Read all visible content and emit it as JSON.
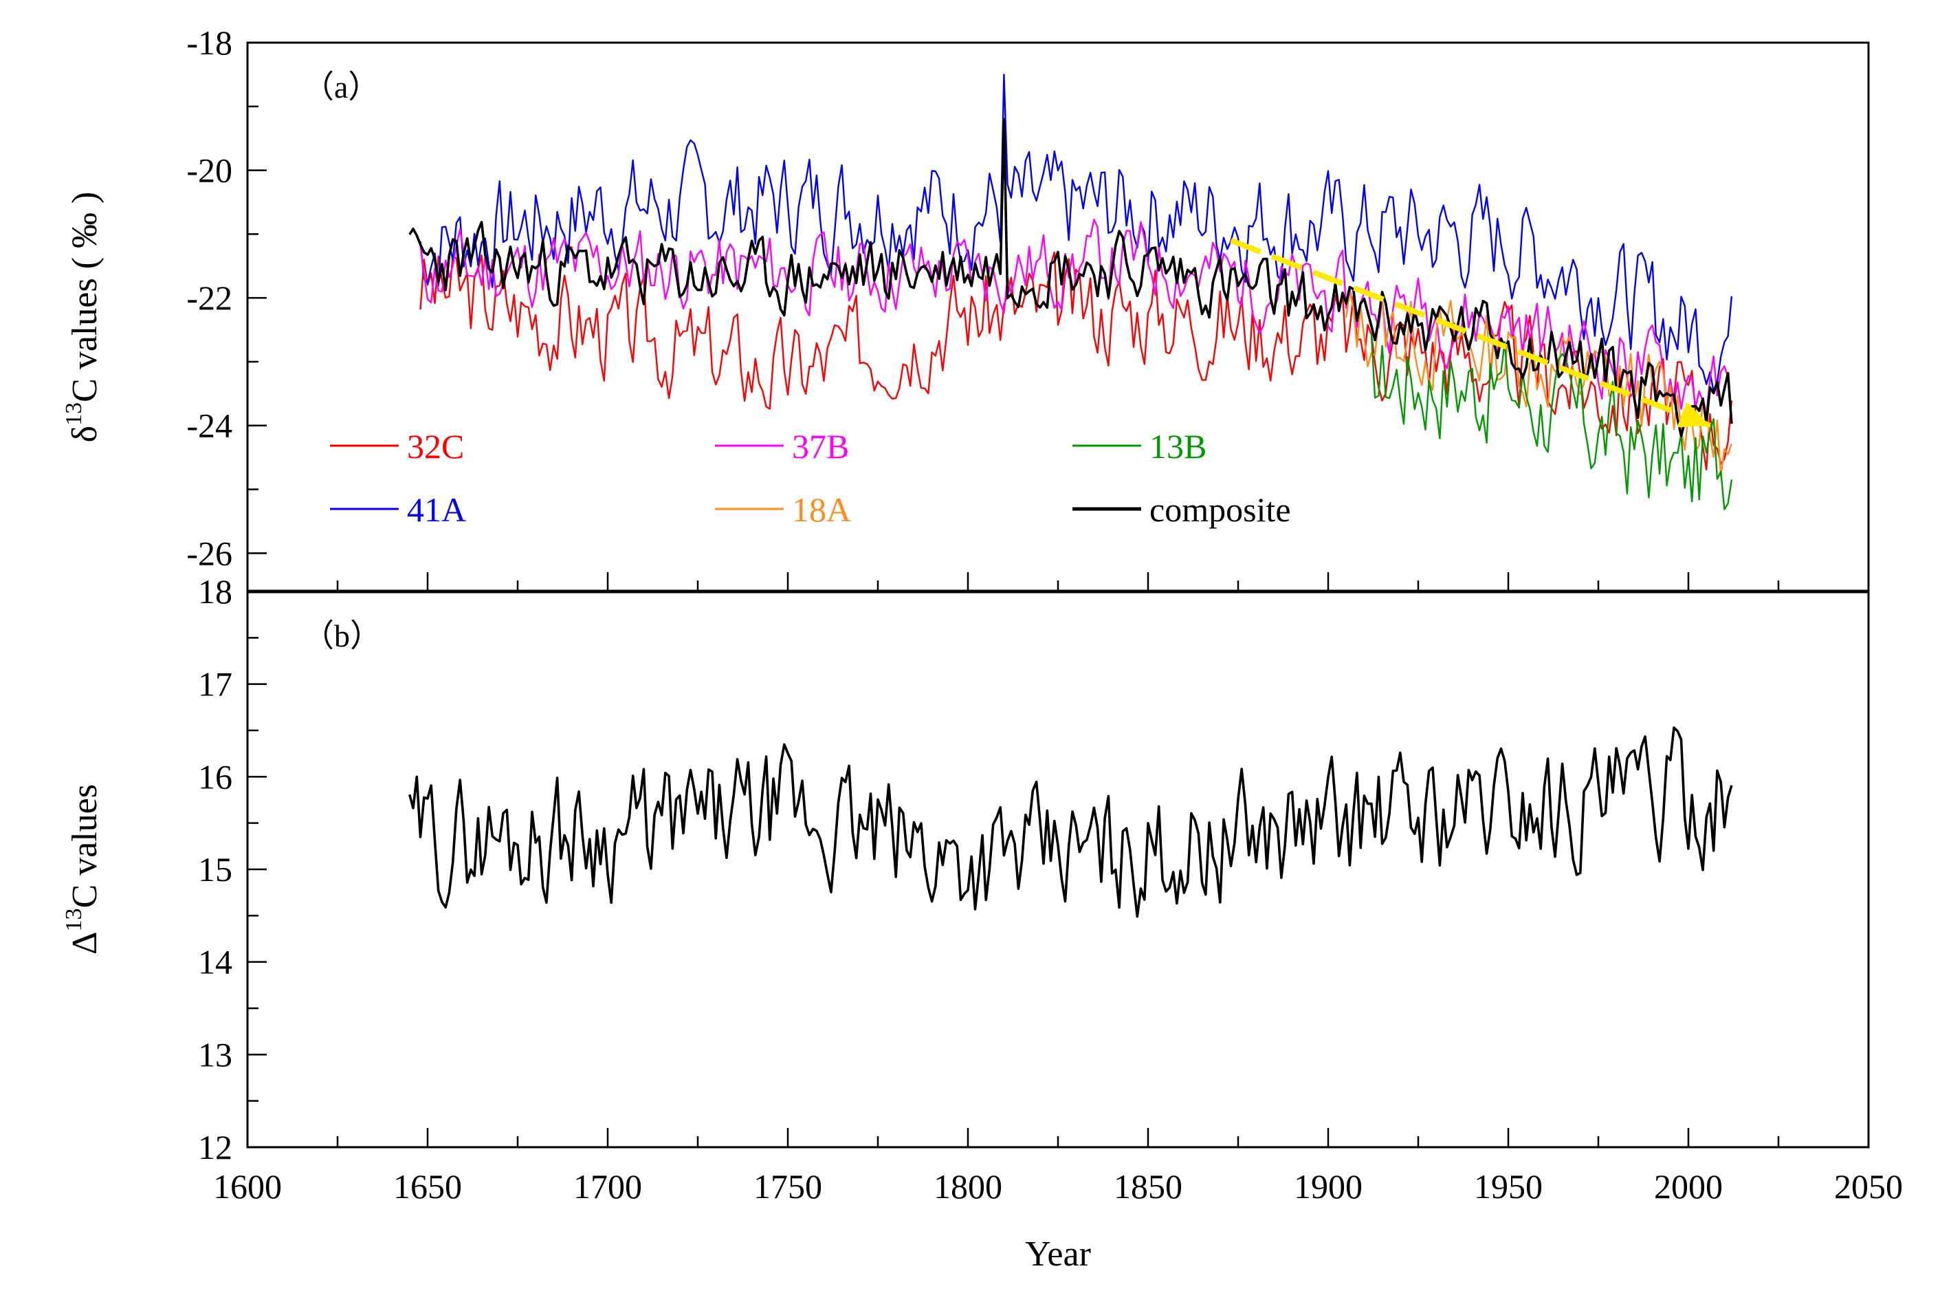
{
  "chart_data": [
    {
      "panel": "a",
      "type": "line",
      "panel_label": "（a）",
      "ylabel": "δ13C values (‰)",
      "ylabel_parts": {
        "symbol": "δ",
        "sup": "13",
        "rest": "C values ( ‰ )"
      },
      "ylim": [
        -26.6,
        -18
      ],
      "yticks": [
        -26,
        -24,
        -22,
        -20,
        -18
      ],
      "ytick_labels": [
        "-26",
        "-24",
        "-22",
        "-20",
        "-18"
      ],
      "series": [
        {
          "name": "32C",
          "color": "#ff0000",
          "start": 1648,
          "end": 2012,
          "base": [
            [
              1648,
              -21.8
            ],
            [
              1700,
              -22.5
            ],
            [
              1750,
              -23.2
            ],
            [
              1800,
              -22.2
            ],
            [
              1850,
              -22.2
            ],
            [
              1900,
              -22.6
            ],
            [
              1950,
              -23.0
            ],
            [
              2000,
              -23.8
            ],
            [
              2012,
              -23.9
            ]
          ],
          "amp": 0.9,
          "seed": 3
        },
        {
          "name": "41A",
          "color": "#0000ff",
          "start": 1648,
          "end": 2012,
          "base": [
            [
              1648,
              -21.2
            ],
            [
              1700,
              -20.6
            ],
            [
              1750,
              -20.5
            ],
            [
              1800,
              -20.6
            ],
            [
              1850,
              -20.6
            ],
            [
              1900,
              -20.9
            ],
            [
              1950,
              -21.1
            ],
            [
              2000,
              -22.5
            ],
            [
              2012,
              -22.6
            ]
          ],
          "amp": 0.95,
          "seed": 7
        },
        {
          "name": "37B",
          "color": "#ff00ff",
          "start": 1648,
          "end": 2012,
          "base": [
            [
              1648,
              -21.6
            ],
            [
              1700,
              -21.5
            ],
            [
              1750,
              -21.6
            ],
            [
              1800,
              -21.6
            ],
            [
              1850,
              -21.4
            ],
            [
              1900,
              -22.0
            ],
            [
              1950,
              -22.4
            ],
            [
              2000,
              -23.3
            ],
            [
              2012,
              -23.6
            ]
          ],
          "amp": 0.7,
          "seed": 11
        },
        {
          "name": "18A",
          "color": "#ff8c1a",
          "start": 1905,
          "end": 2012,
          "base": [
            [
              1905,
              -22.4
            ],
            [
              1950,
              -22.9
            ],
            [
              2000,
              -23.7
            ],
            [
              2012,
              -24.6
            ]
          ],
          "amp": 0.8,
          "seed": 13
        },
        {
          "name": "13B",
          "color": "#009900",
          "start": 1912,
          "end": 2012,
          "base": [
            [
              1912,
              -23.2
            ],
            [
              1950,
              -23.4
            ],
            [
              2000,
              -24.8
            ],
            [
              2012,
              -24.4
            ]
          ],
          "amp": 1.0,
          "seed": 17
        },
        {
          "name": "composite",
          "color": "#000000",
          "start": 1645,
          "end": 2012,
          "base": [
            [
              1645,
              -21.4
            ],
            [
              1700,
              -21.6
            ],
            [
              1750,
              -21.7
            ],
            [
              1800,
              -21.5
            ],
            [
              1850,
              -21.5
            ],
            [
              1900,
              -22.2
            ],
            [
              1950,
              -22.6
            ],
            [
              2000,
              -23.6
            ],
            [
              2012,
              -23.8
            ]
          ],
          "amp": 0.6,
          "seed": 23
        }
      ],
      "legend": [
        [
          "32C",
          "37B",
          "13B"
        ],
        [
          "41A",
          "18A",
          "composite"
        ]
      ],
      "trend_arrow": {
        "x": [
          1873,
          2006
        ],
        "y": [
          -21.1,
          -24.0
        ],
        "color": "#ffea00"
      },
      "peaks": [
        [
          1810,
          -18.5
        ],
        [
          1810.5,
          -19.2
        ]
      ]
    },
    {
      "panel": "b",
      "type": "line",
      "panel_label": "（b）",
      "ylabel": "Δ13C values",
      "ylabel_parts": {
        "symbol": "Δ",
        "sup": "13",
        "rest": "C values"
      },
      "ylim": [
        12,
        18
      ],
      "yticks": [
        12,
        13,
        14,
        15,
        16,
        17,
        18
      ],
      "ytick_labels": [
        "12",
        "13",
        "14",
        "15",
        "16",
        "17",
        "18"
      ],
      "series": [
        {
          "name": "Δ13C",
          "color": "#000000",
          "start": 1645,
          "end": 2012,
          "base": [
            [
              1645,
              15.3
            ],
            [
              1700,
              15.4
            ],
            [
              1750,
              15.6
            ],
            [
              1800,
              15.1
            ],
            [
              1850,
              15.2
            ],
            [
              1900,
              15.5
            ],
            [
              1950,
              15.7
            ],
            [
              2000,
              15.8
            ],
            [
              2012,
              15.8
            ]
          ],
          "amp": 0.75,
          "seed": 29
        }
      ]
    }
  ],
  "x_axis": {
    "xlabel": "Year",
    "xlim": [
      1600,
      2050
    ],
    "xticks": [
      1600,
      1650,
      1700,
      1750,
      1800,
      1850,
      1900,
      1950,
      2000,
      2050
    ],
    "xtick_labels": [
      "1600",
      "1650",
      "1700",
      "1750",
      "1800",
      "1850",
      "1900",
      "1950",
      "2000",
      "2050"
    ]
  }
}
